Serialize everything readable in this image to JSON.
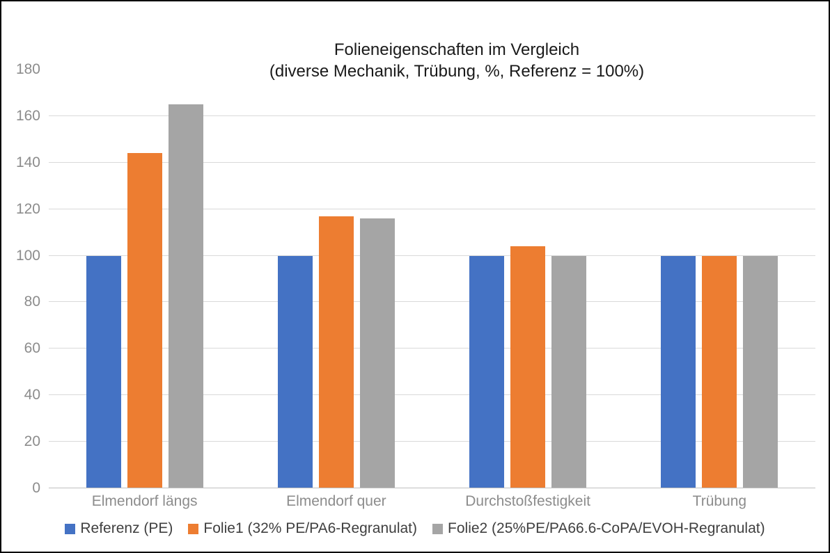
{
  "chart_data": {
    "type": "bar",
    "title": "Folieneigenschaften im Vergleich",
    "subtitle": "(diverse Mechanik, Trübung, %, Referenz = 100%)",
    "categories": [
      "Elmendorf längs",
      "Elmendorf quer",
      "Durchstoßfestigkeit",
      "Trübung"
    ],
    "series": [
      {
        "name": "Referenz (PE)",
        "color": "#4472C4",
        "values": [
          100,
          100,
          100,
          100
        ]
      },
      {
        "name": "Folie1 (32% PE/PA6-Regranulat)",
        "color": "#ED7D31",
        "values": [
          144,
          117,
          104,
          100
        ]
      },
      {
        "name": "Folie2 (25%PE/PA66.6-CoPA/EVOH-Regranulat)",
        "color": "#A5A5A5",
        "values": [
          165,
          116,
          100,
          100
        ]
      }
    ],
    "y_axis": {
      "min": 0,
      "max": 180,
      "step": 20,
      "tick_labels": [
        "0",
        "20",
        "40",
        "60",
        "80",
        "100",
        "120",
        "140",
        "160",
        "180"
      ],
      "top_gridline_value": 160
    },
    "grid": true,
    "legend_position": "bottom",
    "styles": {
      "background": "#FFFFFF",
      "frame_border_color": "#000000",
      "title_color": "#1A1A1A",
      "axis_label_color": "#8C8C8C",
      "category_label_color": "#8C8C8C",
      "gridline_color": "#D9D9D9",
      "axis_line_color": "#BFBFBF",
      "legend_text_color": "#3F3F3F"
    }
  }
}
